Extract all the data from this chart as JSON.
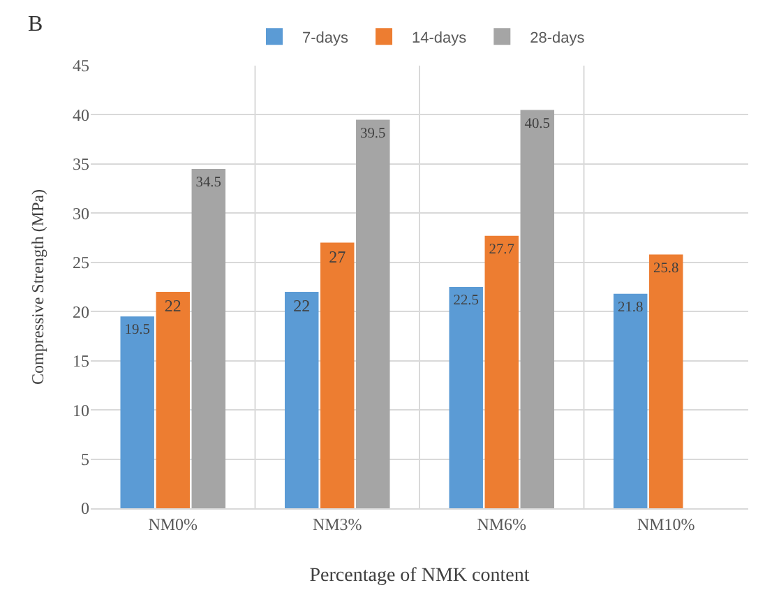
{
  "chart_data": {
    "type": "bar",
    "annotations": [
      "B"
    ],
    "xlabel": "Percentage of NMK content",
    "ylabel": "Compressive Strength (MPa)",
    "categories": [
      "NM0%",
      "NM3%",
      "NM6%",
      "NM10%"
    ],
    "series": [
      {
        "name": "7-days",
        "color": "#5b9bd5",
        "values": [
          19.5,
          22,
          22.5,
          21.8
        ]
      },
      {
        "name": "14-days",
        "color": "#ed7d31",
        "values": [
          22,
          27,
          27.7,
          25.8
        ]
      },
      {
        "name": "28-days",
        "color": "#a5a5a5",
        "values": [
          34.5,
          39.5,
          40.5,
          null
        ]
      }
    ],
    "ylim": [
      0,
      45
    ],
    "yticks": [
      0,
      5,
      10,
      15,
      20,
      25,
      30,
      35,
      40,
      45
    ],
    "grid": true,
    "legend": "top",
    "data_labels": true
  }
}
